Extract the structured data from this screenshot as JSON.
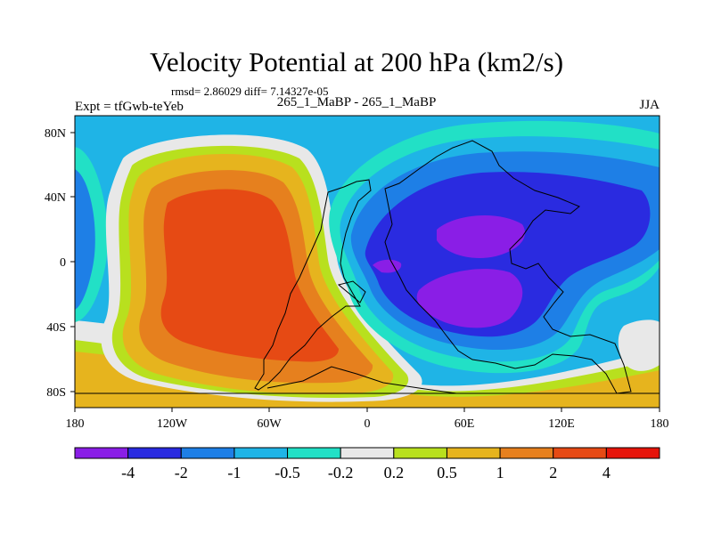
{
  "chart_data": {
    "type": "heatmap",
    "title": "Velocity Potential at 200 hPa (km2/s)",
    "subtitle_stats": "rmsd= 2.86029 diff= 7.14327e-05",
    "left_label": "Expt = tfGwb-teYeb",
    "center_label": "265_1_MaBP - 265_1_MaBP",
    "right_label": "JJA",
    "x_ticks": [
      "180",
      "120W",
      "60W",
      "0",
      "60E",
      "120E",
      "180"
    ],
    "y_ticks": [
      "80N",
      "40N",
      "0",
      "40S",
      "80S"
    ],
    "xlim": [
      -180,
      180
    ],
    "ylim": [
      -90,
      90
    ],
    "colorbar": {
      "colors": [
        "#8a1ee6",
        "#2a2be0",
        "#1e7fe6",
        "#1fb4e6",
        "#22e0c6",
        "#e8e8e8",
        "#b8e01e",
        "#e6b41e",
        "#e6801e",
        "#e64a14",
        "#e6140a"
      ],
      "labels": [
        "-4",
        "-2",
        "-1",
        "-0.5",
        "-0.2",
        "0.2",
        "0.5",
        "1",
        "2",
        "4"
      ]
    }
  }
}
